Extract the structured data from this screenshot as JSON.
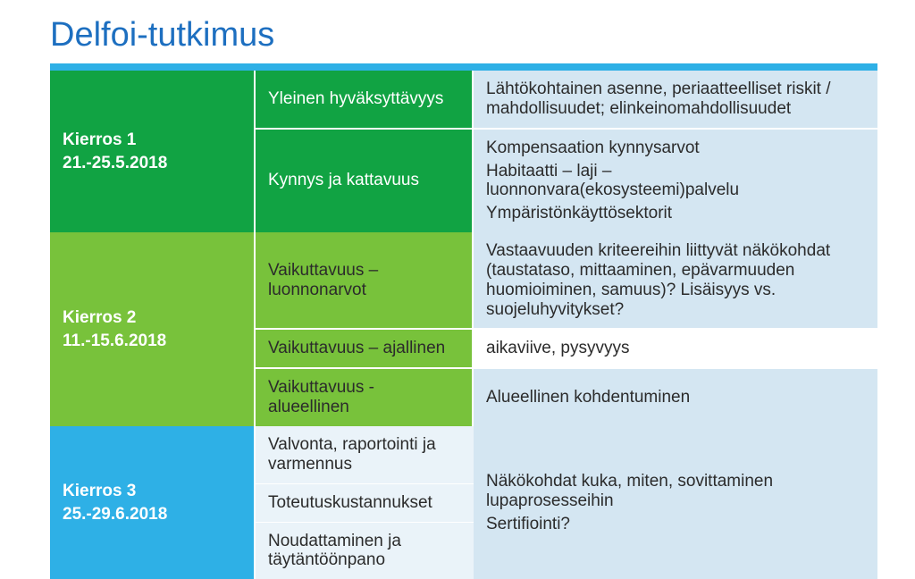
{
  "title": {
    "text": "Delfoi-tutkimus",
    "color": "#1d6fc0",
    "fontsize": 38
  },
  "rule_color": "#2eb0e6",
  "colors": {
    "round1_bg": "#11a343",
    "round1_topic_bg": "#11a343",
    "round2_bg": "#78c23b",
    "round2_topic_bg": "#78c23b",
    "round3_bg": "#2eb0e6",
    "detail_bg": "#d4e6f2",
    "detail_bg_alt": "#ffffff",
    "round3_topic_bg": "#eaf3f9",
    "text_white": "#ffffff",
    "text_dark": "#2b2b2b"
  },
  "table": {
    "rounds": [
      {
        "label": "Kierros 1",
        "dates": "21.-25.5.2018",
        "rows": [
          {
            "topic": "Yleinen hyväksyttävyys",
            "detail": "Lähtökohtainen asenne, periaatteelliset riskit / mahdollisuudet; elinkeinomahdollisuudet"
          },
          {
            "topic": "Kynnys ja kattavuus",
            "detail_lines": [
              "Kompensaation kynnysarvot",
              "Habitaatti – laji – luonnonvara(ekosysteemi)palvelu",
              "Ympäristönkäyttösektorit"
            ]
          }
        ]
      },
      {
        "label": "Kierros 2",
        "dates": "11.-15.6.2018",
        "rows": [
          {
            "topic": "Vaikuttavuus – luonnonarvot",
            "detail": "Vastaavuuden kriteereihin liittyvät näkökohdat (taustataso, mittaaminen, epävarmuuden huomioiminen, samuus)? Lisäisyys vs. suojeluhyvitykset?"
          },
          {
            "topic": "Vaikuttavuus – ajallinen",
            "detail": "aikaviive, pysyvyys"
          },
          {
            "topic": "Vaikuttavuus - alueellinen",
            "detail": "Alueellinen kohdentuminen"
          }
        ]
      },
      {
        "label": "Kierros 3",
        "dates": "25.-29.6.2018",
        "rows": [
          {
            "topic": "Valvonta, raportointi ja varmennus"
          },
          {
            "topic": "Toteutuskustannukset"
          },
          {
            "topic": "Noudattaminen  ja täytäntöönpano"
          }
        ],
        "detail_lines": [
          "Näkökohdat kuka, miten, sovittaminen lupaprosesseihin",
          "Sertifiointi?"
        ]
      }
    ]
  }
}
